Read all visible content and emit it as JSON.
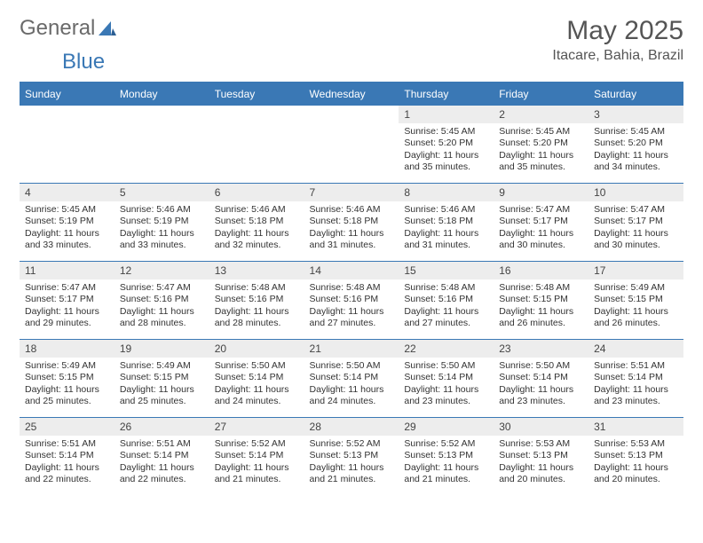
{
  "logo": {
    "text1": "General",
    "text2": "Blue"
  },
  "title": "May 2025",
  "location": "Itacare, Bahia, Brazil",
  "weekdays": [
    "Sunday",
    "Monday",
    "Tuesday",
    "Wednesday",
    "Thursday",
    "Friday",
    "Saturday"
  ],
  "colors": {
    "header_bg": "#3a78b5",
    "header_fg": "#ffffff",
    "daynum_bg": "#ededed",
    "border": "#3a78b5",
    "text": "#333333",
    "title_fg": "#555555"
  },
  "weeks": [
    [
      {
        "n": "",
        "sr": "",
        "ss": "",
        "dl": ""
      },
      {
        "n": "",
        "sr": "",
        "ss": "",
        "dl": ""
      },
      {
        "n": "",
        "sr": "",
        "ss": "",
        "dl": ""
      },
      {
        "n": "",
        "sr": "",
        "ss": "",
        "dl": ""
      },
      {
        "n": "1",
        "sr": "Sunrise: 5:45 AM",
        "ss": "Sunset: 5:20 PM",
        "dl": "Daylight: 11 hours and 35 minutes."
      },
      {
        "n": "2",
        "sr": "Sunrise: 5:45 AM",
        "ss": "Sunset: 5:20 PM",
        "dl": "Daylight: 11 hours and 35 minutes."
      },
      {
        "n": "3",
        "sr": "Sunrise: 5:45 AM",
        "ss": "Sunset: 5:20 PM",
        "dl": "Daylight: 11 hours and 34 minutes."
      }
    ],
    [
      {
        "n": "4",
        "sr": "Sunrise: 5:45 AM",
        "ss": "Sunset: 5:19 PM",
        "dl": "Daylight: 11 hours and 33 minutes."
      },
      {
        "n": "5",
        "sr": "Sunrise: 5:46 AM",
        "ss": "Sunset: 5:19 PM",
        "dl": "Daylight: 11 hours and 33 minutes."
      },
      {
        "n": "6",
        "sr": "Sunrise: 5:46 AM",
        "ss": "Sunset: 5:18 PM",
        "dl": "Daylight: 11 hours and 32 minutes."
      },
      {
        "n": "7",
        "sr": "Sunrise: 5:46 AM",
        "ss": "Sunset: 5:18 PM",
        "dl": "Daylight: 11 hours and 31 minutes."
      },
      {
        "n": "8",
        "sr": "Sunrise: 5:46 AM",
        "ss": "Sunset: 5:18 PM",
        "dl": "Daylight: 11 hours and 31 minutes."
      },
      {
        "n": "9",
        "sr": "Sunrise: 5:47 AM",
        "ss": "Sunset: 5:17 PM",
        "dl": "Daylight: 11 hours and 30 minutes."
      },
      {
        "n": "10",
        "sr": "Sunrise: 5:47 AM",
        "ss": "Sunset: 5:17 PM",
        "dl": "Daylight: 11 hours and 30 minutes."
      }
    ],
    [
      {
        "n": "11",
        "sr": "Sunrise: 5:47 AM",
        "ss": "Sunset: 5:17 PM",
        "dl": "Daylight: 11 hours and 29 minutes."
      },
      {
        "n": "12",
        "sr": "Sunrise: 5:47 AM",
        "ss": "Sunset: 5:16 PM",
        "dl": "Daylight: 11 hours and 28 minutes."
      },
      {
        "n": "13",
        "sr": "Sunrise: 5:48 AM",
        "ss": "Sunset: 5:16 PM",
        "dl": "Daylight: 11 hours and 28 minutes."
      },
      {
        "n": "14",
        "sr": "Sunrise: 5:48 AM",
        "ss": "Sunset: 5:16 PM",
        "dl": "Daylight: 11 hours and 27 minutes."
      },
      {
        "n": "15",
        "sr": "Sunrise: 5:48 AM",
        "ss": "Sunset: 5:16 PM",
        "dl": "Daylight: 11 hours and 27 minutes."
      },
      {
        "n": "16",
        "sr": "Sunrise: 5:48 AM",
        "ss": "Sunset: 5:15 PM",
        "dl": "Daylight: 11 hours and 26 minutes."
      },
      {
        "n": "17",
        "sr": "Sunrise: 5:49 AM",
        "ss": "Sunset: 5:15 PM",
        "dl": "Daylight: 11 hours and 26 minutes."
      }
    ],
    [
      {
        "n": "18",
        "sr": "Sunrise: 5:49 AM",
        "ss": "Sunset: 5:15 PM",
        "dl": "Daylight: 11 hours and 25 minutes."
      },
      {
        "n": "19",
        "sr": "Sunrise: 5:49 AM",
        "ss": "Sunset: 5:15 PM",
        "dl": "Daylight: 11 hours and 25 minutes."
      },
      {
        "n": "20",
        "sr": "Sunrise: 5:50 AM",
        "ss": "Sunset: 5:14 PM",
        "dl": "Daylight: 11 hours and 24 minutes."
      },
      {
        "n": "21",
        "sr": "Sunrise: 5:50 AM",
        "ss": "Sunset: 5:14 PM",
        "dl": "Daylight: 11 hours and 24 minutes."
      },
      {
        "n": "22",
        "sr": "Sunrise: 5:50 AM",
        "ss": "Sunset: 5:14 PM",
        "dl": "Daylight: 11 hours and 23 minutes."
      },
      {
        "n": "23",
        "sr": "Sunrise: 5:50 AM",
        "ss": "Sunset: 5:14 PM",
        "dl": "Daylight: 11 hours and 23 minutes."
      },
      {
        "n": "24",
        "sr": "Sunrise: 5:51 AM",
        "ss": "Sunset: 5:14 PM",
        "dl": "Daylight: 11 hours and 23 minutes."
      }
    ],
    [
      {
        "n": "25",
        "sr": "Sunrise: 5:51 AM",
        "ss": "Sunset: 5:14 PM",
        "dl": "Daylight: 11 hours and 22 minutes."
      },
      {
        "n": "26",
        "sr": "Sunrise: 5:51 AM",
        "ss": "Sunset: 5:14 PM",
        "dl": "Daylight: 11 hours and 22 minutes."
      },
      {
        "n": "27",
        "sr": "Sunrise: 5:52 AM",
        "ss": "Sunset: 5:14 PM",
        "dl": "Daylight: 11 hours and 21 minutes."
      },
      {
        "n": "28",
        "sr": "Sunrise: 5:52 AM",
        "ss": "Sunset: 5:13 PM",
        "dl": "Daylight: 11 hours and 21 minutes."
      },
      {
        "n": "29",
        "sr": "Sunrise: 5:52 AM",
        "ss": "Sunset: 5:13 PM",
        "dl": "Daylight: 11 hours and 21 minutes."
      },
      {
        "n": "30",
        "sr": "Sunrise: 5:53 AM",
        "ss": "Sunset: 5:13 PM",
        "dl": "Daylight: 11 hours and 20 minutes."
      },
      {
        "n": "31",
        "sr": "Sunrise: 5:53 AM",
        "ss": "Sunset: 5:13 PM",
        "dl": "Daylight: 11 hours and 20 minutes."
      }
    ]
  ]
}
